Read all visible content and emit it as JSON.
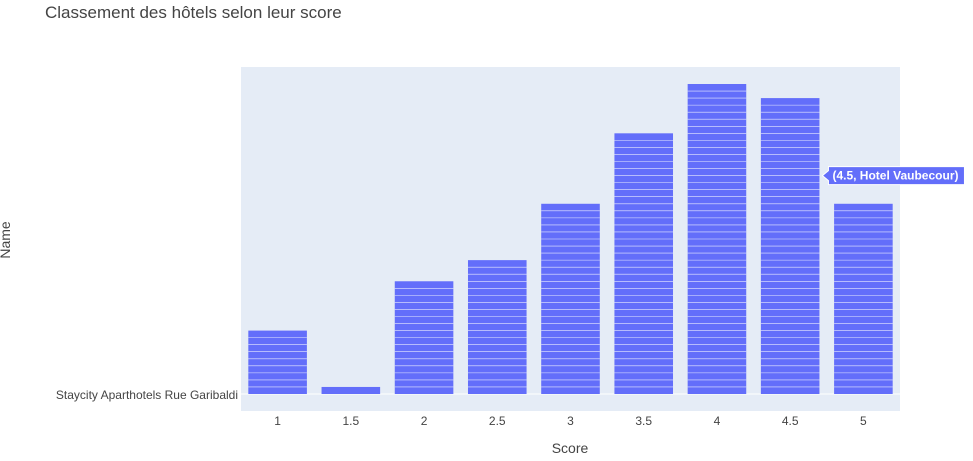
{
  "chart_data": {
    "type": "bar",
    "title": "Classement des hôtels selon leur score",
    "xlabel": "Score",
    "ylabel": "Name",
    "categories": [
      "1",
      "1.5",
      "2",
      "2.5",
      "3",
      "3.5",
      "4",
      "4.5",
      "5"
    ],
    "values": [
      9,
      1,
      16,
      19,
      27,
      37,
      44,
      42,
      27
    ],
    "y_tick_label": "Staycity Aparthotels Rue Garibaldi",
    "grid": true,
    "colors": {
      "bar": "#636efa",
      "plot_bg": "#e5ecf6",
      "segment_line": "#ffffff"
    },
    "hover": {
      "category": "4.5",
      "text": "(4.5, Hotel Vaubecour)",
      "value": 31
    }
  }
}
